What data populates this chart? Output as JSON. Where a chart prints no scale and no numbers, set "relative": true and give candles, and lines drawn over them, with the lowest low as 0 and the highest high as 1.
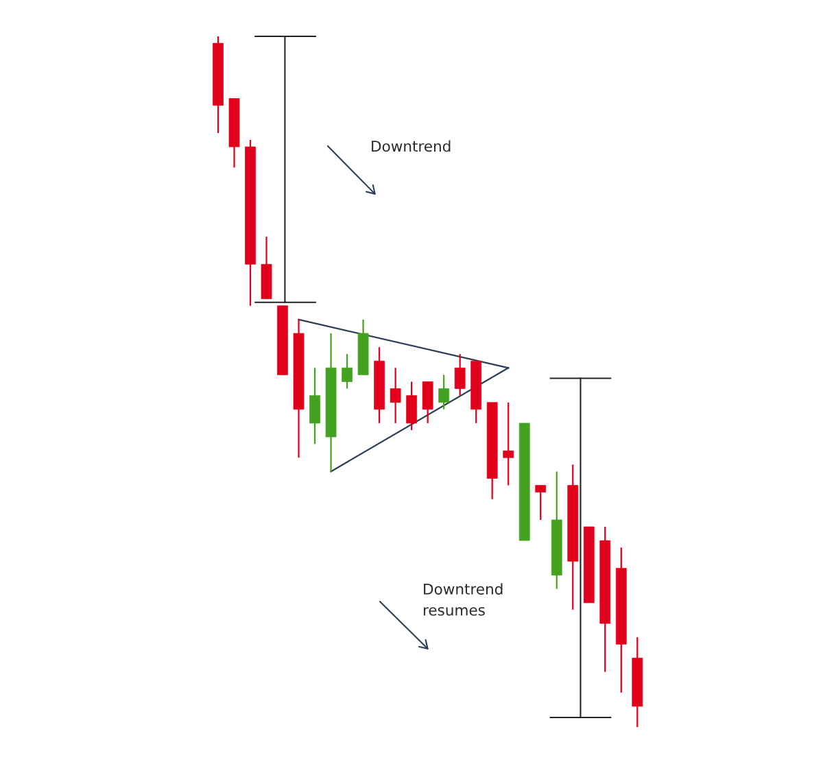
{
  "chart_data": {
    "type": "candlestick",
    "relative": true,
    "categories": [
      null,
      null,
      null,
      null,
      null,
      null,
      null,
      null,
      null,
      null,
      null,
      null,
      null,
      null,
      null,
      null,
      null,
      null,
      null,
      null,
      null,
      null,
      null,
      null,
      null,
      null,
      null
    ],
    "ohlc": [
      [
        0.99,
        1.0,
        0.86,
        0.9
      ],
      [
        0.91,
        0.91,
        0.81,
        0.84
      ],
      [
        0.84,
        0.85,
        0.61,
        0.67
      ],
      [
        0.67,
        0.71,
        0.62,
        0.62
      ],
      [
        0.61,
        0.61,
        0.51,
        0.51
      ],
      [
        0.57,
        0.59,
        0.39,
        0.46
      ],
      [
        0.44,
        0.52,
        0.41,
        0.48
      ],
      [
        0.42,
        0.57,
        0.37,
        0.52
      ],
      [
        0.5,
        0.54,
        0.49,
        0.52
      ],
      [
        0.51,
        0.59,
        0.51,
        0.57
      ],
      [
        0.53,
        0.55,
        0.44,
        0.46
      ],
      [
        0.49,
        0.52,
        0.44,
        0.47
      ],
      [
        0.48,
        0.5,
        0.43,
        0.44
      ],
      [
        0.5,
        0.5,
        0.44,
        0.46
      ],
      [
        0.47,
        0.51,
        0.46,
        0.49
      ],
      [
        0.52,
        0.54,
        0.48,
        0.49
      ],
      [
        0.53,
        0.53,
        0.44,
        0.46
      ],
      [
        0.47,
        0.47,
        0.33,
        0.36
      ],
      [
        0.4,
        0.47,
        0.35,
        0.39
      ],
      [
        0.27,
        0.44,
        0.27,
        0.44
      ],
      [
        0.35,
        0.35,
        0.3,
        0.34
      ],
      [
        0.22,
        0.37,
        0.2,
        0.3
      ],
      [
        0.35,
        0.38,
        0.17,
        0.24
      ],
      [
        0.29,
        0.29,
        0.18,
        0.18
      ],
      [
        0.27,
        0.29,
        0.08,
        0.15
      ],
      [
        0.23,
        0.26,
        0.05,
        0.12
      ],
      [
        0.1,
        0.13,
        0.0,
        0.03
      ]
    ],
    "colors": [
      "#e0001b",
      "#e0001b",
      "#e0001b",
      "#e0001b",
      "#e0001b",
      "#e0001b",
      "#43a320",
      "#43a320",
      "#43a320",
      "#43a320",
      "#e0001b",
      "#e0001b",
      "#e0001b",
      "#e0001b",
      "#43a320",
      "#e0001b",
      "#e0001b",
      "#e0001b",
      "#e0001b",
      "#43a320",
      "#e0001b",
      "#43a320",
      "#e0001b",
      "#e0001b",
      "#e0001b",
      "#e0001b",
      "#e0001b"
    ],
    "series": [
      {
        "type": "line",
        "values": [
          null,
          null,
          null,
          null,
          null,
          0.59,
          null,
          null,
          null,
          null,
          null,
          null,
          null,
          null,
          null,
          null,
          null,
          null,
          0.52,
          null,
          null,
          null,
          null,
          null,
          null,
          null,
          null
        ],
        "color": "#2c3e55"
      },
      {
        "type": "line",
        "values": [
          null,
          null,
          null,
          null,
          null,
          null,
          null,
          0.37,
          null,
          null,
          null,
          null,
          null,
          null,
          null,
          null,
          null,
          null,
          0.52,
          null,
          null,
          null,
          null,
          null,
          null,
          null,
          null
        ],
        "color": "#2c3e55"
      }
    ],
    "annotations": [
      "Downtrend",
      "Downtrend\nresumes"
    ]
  }
}
